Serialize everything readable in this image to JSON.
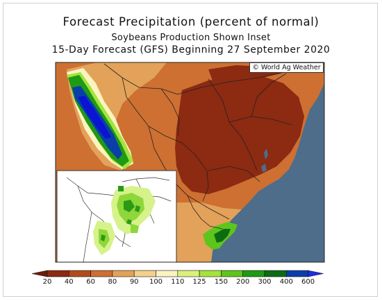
{
  "title": "Forecast Precipitation (percent of normal)",
  "subtitle": "Soybeans Production Shown Inset",
  "subtitle2": "15-Day Forecast (GFS) Beginning 27 September 2020",
  "copyright": "© World Ag Weather",
  "legend": {
    "labels": [
      "20",
      "40",
      "60",
      "80",
      "90",
      "100",
      "110",
      "125",
      "150",
      "200",
      "300",
      "400",
      "600"
    ],
    "colors": [
      "#8c2a12",
      "#b14b1c",
      "#cd7032",
      "#e3a259",
      "#f4d08c",
      "#fbf3c0",
      "#d9f17a",
      "#a4e33c",
      "#5dc51c",
      "#1f9a14",
      "#0d6c12",
      "#0a3fa8",
      "#0a14d2"
    ],
    "low_arrow_color": "#6e1c0a",
    "high_arrow_color": "#1d2de6"
  },
  "colors": {
    "ocean": "#4d6d8b",
    "inset_ocean": "#ffffff",
    "inset_land": "#ffffff",
    "soy_dark": "#2a9a14",
    "soy_mid": "#8fd63a",
    "soy_light": "#d6f28a"
  }
}
